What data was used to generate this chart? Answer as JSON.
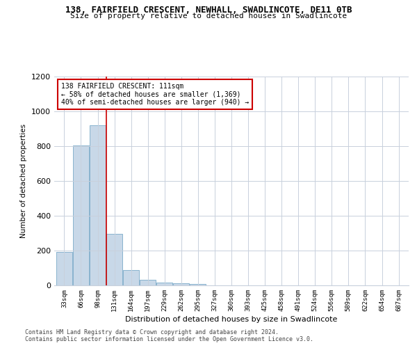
{
  "title_line1": "138, FAIRFIELD CRESCENT, NEWHALL, SWADLINCOTE, DE11 0TB",
  "title_line2": "Size of property relative to detached houses in Swadlincote",
  "xlabel": "Distribution of detached houses by size in Swadlincote",
  "ylabel": "Number of detached properties",
  "bar_color": "#c8d8e8",
  "bar_edge_color": "#7aaac8",
  "categories": [
    "33sqm",
    "66sqm",
    "98sqm",
    "131sqm",
    "164sqm",
    "197sqm",
    "229sqm",
    "262sqm",
    "295sqm",
    "327sqm",
    "360sqm",
    "393sqm",
    "425sqm",
    "458sqm",
    "491sqm",
    "524sqm",
    "556sqm",
    "589sqm",
    "622sqm",
    "654sqm",
    "687sqm"
  ],
  "values": [
    193,
    805,
    920,
    295,
    88,
    33,
    18,
    12,
    8,
    0,
    0,
    0,
    0,
    0,
    0,
    0,
    0,
    0,
    0,
    0,
    0
  ],
  "ylim": [
    0,
    1200
  ],
  "yticks": [
    0,
    200,
    400,
    600,
    800,
    1000,
    1200
  ],
  "property_line_x": 2.5,
  "annotation_text": "138 FAIRFIELD CRESCENT: 111sqm\n← 58% of detached houses are smaller (1,369)\n40% of semi-detached houses are larger (940) →",
  "annotation_box_color": "#ffffff",
  "annotation_box_edge": "#cc0000",
  "red_line_color": "#cc0000",
  "footer_line1": "Contains HM Land Registry data © Crown copyright and database right 2024.",
  "footer_line2": "Contains public sector information licensed under the Open Government Licence v3.0.",
  "bg_color": "#ffffff",
  "grid_color": "#c8d0dc"
}
